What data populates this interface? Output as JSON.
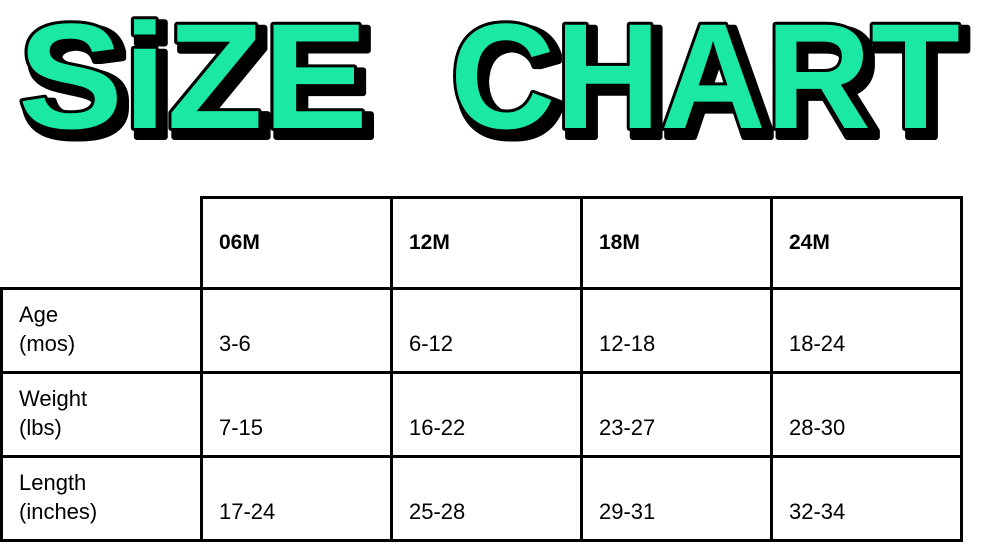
{
  "title": {
    "word1": "SiZE",
    "word2": "CHART",
    "fill_color": "#1FE8A6",
    "outline_color": "#000000"
  },
  "table": {
    "columns": [
      "06M",
      "12M",
      "18M",
      "24M"
    ],
    "rows": [
      {
        "label_line1": "Age",
        "label_line2": "(mos)",
        "values": [
          "3-6",
          "6-12",
          "12-18",
          "18-24"
        ]
      },
      {
        "label_line1": "Weight",
        "label_line2": "(lbs)",
        "values": [
          "7-15",
          "16-22",
          "23-27",
          "28-30"
        ]
      },
      {
        "label_line1": "Length",
        "label_line2": "(inches)",
        "values": [
          "17-24",
          "25-28",
          "29-31",
          "32-34"
        ]
      }
    ]
  }
}
